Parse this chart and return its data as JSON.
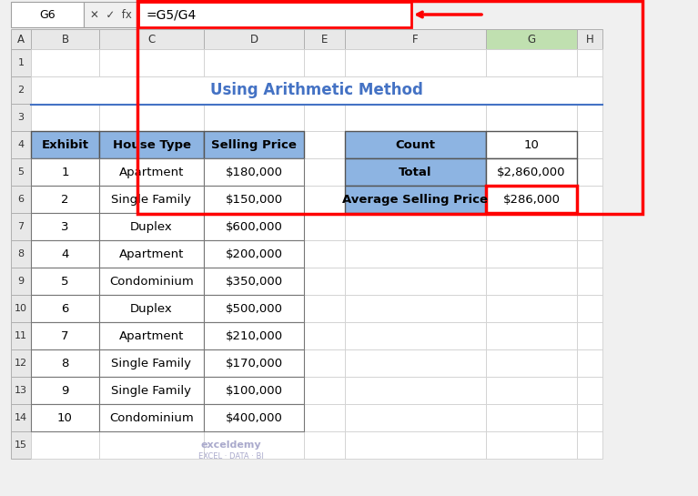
{
  "title": "Using Arithmetic Method",
  "formula_bar_text": "=G5/G4",
  "cell_ref": "G6",
  "bg_color": "#f0f0f0",
  "sheet_bg": "#ffffff",
  "header_blue": "#8db4e2",
  "col_letters": [
    "A",
    "B",
    "C",
    "D",
    "E",
    "F",
    "G",
    "H"
  ],
  "row_numbers": [
    "1",
    "2",
    "3",
    "4",
    "5",
    "6",
    "7",
    "8",
    "9",
    "10",
    "11",
    "12",
    "13",
    "14",
    "15"
  ],
  "main_table": {
    "headers": [
      "Exhibit",
      "House Type",
      "Selling Price"
    ],
    "rows": [
      [
        "1",
        "Apartment",
        "$180,000"
      ],
      [
        "2",
        "Single Family",
        "$150,000"
      ],
      [
        "3",
        "Duplex",
        "$600,000"
      ],
      [
        "4",
        "Apartment",
        "$200,000"
      ],
      [
        "5",
        "Condominium",
        "$350,000"
      ],
      [
        "6",
        "Duplex",
        "$500,000"
      ],
      [
        "7",
        "Apartment",
        "$210,000"
      ],
      [
        "8",
        "Single Family",
        "$170,000"
      ],
      [
        "9",
        "Single Family",
        "$100,000"
      ],
      [
        "10",
        "Condominium",
        "$400,000"
      ]
    ]
  },
  "summary_table": {
    "rows": [
      [
        "Count",
        "10"
      ],
      [
        "Total",
        "$2,860,000"
      ],
      [
        "Average Selling Price",
        "$286,000"
      ]
    ]
  },
  "red_border_color": "#ff0000",
  "green_header_color": "#00b050",
  "formula_bar_border": "#ff0000",
  "arrow_color": "#ff0000",
  "title_color": "#4472c4",
  "separator_line_color": "#4472c4",
  "grid_color": "#d0d0d0",
  "col_header_bg": "#e8e8e8",
  "row_header_bg": "#e8e8e8",
  "selected_col_header": "#c0e0b0"
}
